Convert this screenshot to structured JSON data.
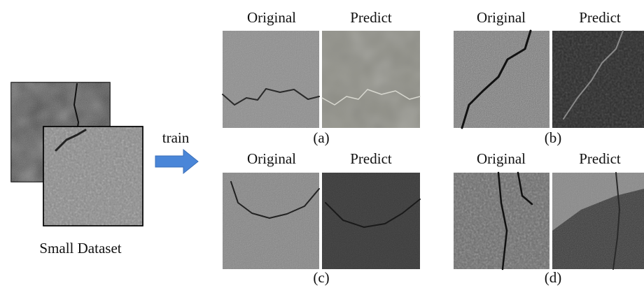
{
  "dataset": {
    "label": "Small Dataset"
  },
  "arrow": {
    "label": "train"
  },
  "panels": [
    {
      "caption": "(a)",
      "original": "Original",
      "predict": "Predict"
    },
    {
      "caption": "(b)",
      "original": "Original",
      "predict": "Predict"
    },
    {
      "caption": "(c)",
      "original": "Original",
      "predict": "Predict"
    },
    {
      "caption": "(d)",
      "original": "Original",
      "predict": "Predict"
    }
  ]
}
